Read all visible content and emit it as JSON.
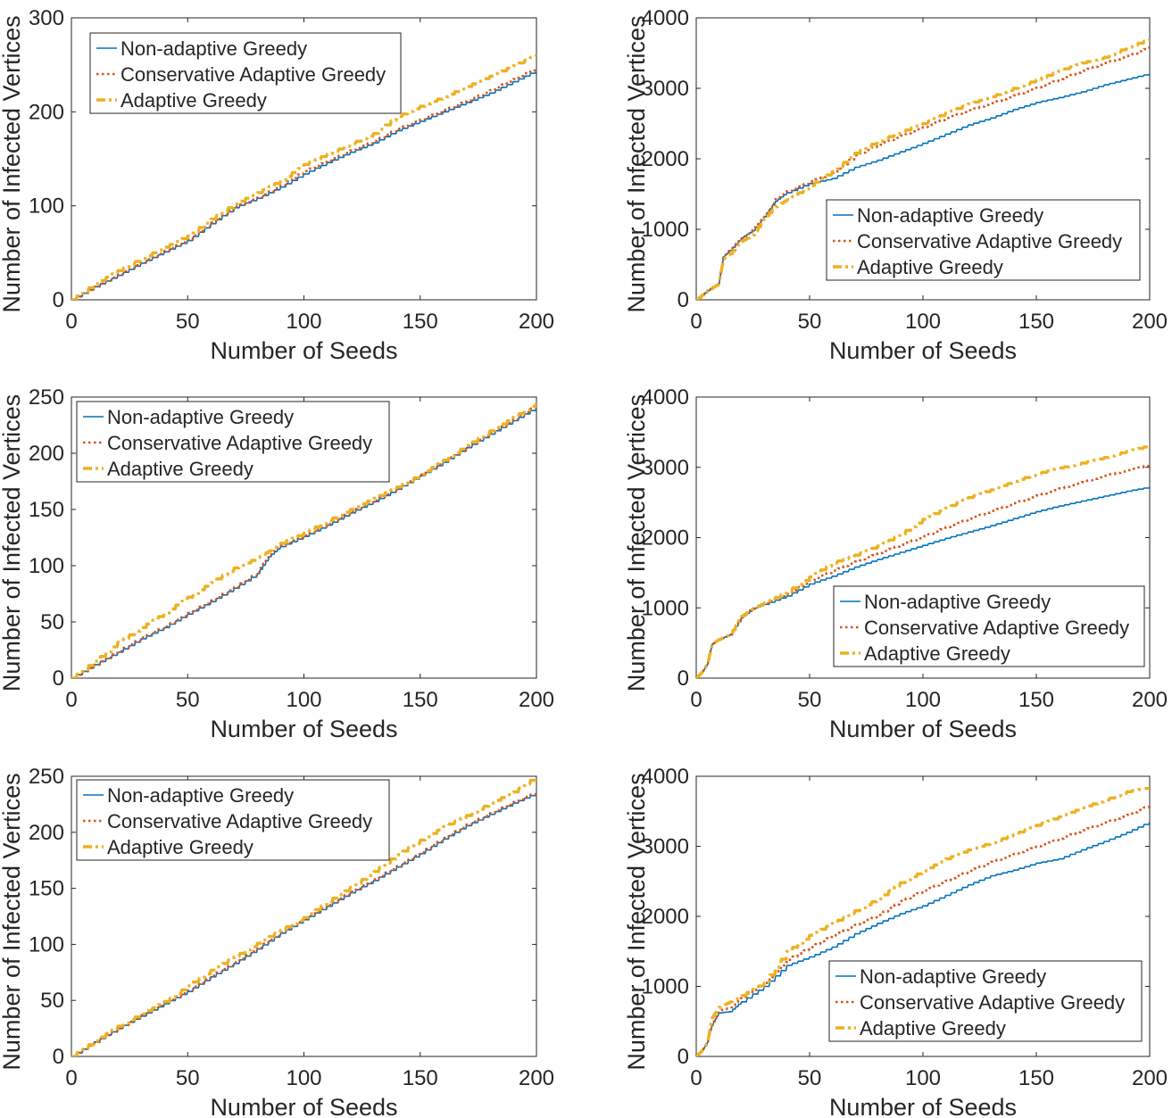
{
  "figure": {
    "series_names": [
      "Non-adaptive Greedy",
      "Conservative Adaptive Greedy",
      "Adaptive Greedy"
    ],
    "colors": {
      "non_adaptive": "#0072BD",
      "conservative": "#D95319",
      "adaptive": "#EDB120",
      "axis": "#262626",
      "legend_border": "#262626"
    }
  },
  "chart_data": [
    {
      "type": "line",
      "xlabel": "Number of Seeds",
      "ylabel": "Number of Infected Vertices",
      "xlim": [
        0,
        200
      ],
      "ylim": [
        0,
        300
      ],
      "xticks": [
        0,
        50,
        100,
        150,
        200
      ],
      "yticks": [
        0,
        100,
        200,
        300
      ],
      "legend_location": "top-left",
      "x": [
        0,
        10,
        20,
        30,
        40,
        50,
        60,
        70,
        80,
        90,
        100,
        110,
        120,
        130,
        140,
        150,
        160,
        170,
        180,
        190,
        200
      ],
      "series": [
        {
          "name": "Non-adaptive Greedy",
          "values": [
            0,
            14,
            26,
            39,
            51,
            63,
            81,
            98,
            108,
            120,
            134,
            146,
            157,
            167,
            180,
            190,
            200,
            210,
            220,
            232,
            244
          ]
        },
        {
          "name": "Conservative Adaptive Greedy",
          "values": [
            0,
            14,
            27,
            40,
            52,
            64,
            82,
            99,
            109,
            122,
            137,
            148,
            159,
            169,
            182,
            192,
            202,
            212,
            223,
            235,
            247
          ]
        },
        {
          "name": "Adaptive Greedy",
          "values": [
            0,
            17,
            31,
            44,
            56,
            68,
            86,
            102,
            114,
            127,
            144,
            155,
            166,
            177,
            195,
            206,
            216,
            227,
            238,
            249,
            261
          ]
        }
      ]
    },
    {
      "type": "line",
      "xlabel": "Number of Seeds",
      "ylabel": "Number of Infected Vertices",
      "xlim": [
        0,
        200
      ],
      "ylim": [
        0,
        4000
      ],
      "xticks": [
        0,
        50,
        100,
        150,
        200
      ],
      "yticks": [
        0,
        1000,
        2000,
        3000,
        4000
      ],
      "legend_location": "bottom-right",
      "x": [
        0,
        5,
        10,
        12,
        15,
        20,
        25,
        30,
        35,
        40,
        50,
        60,
        70,
        80,
        90,
        100,
        110,
        120,
        130,
        140,
        150,
        160,
        170,
        180,
        190,
        200
      ],
      "series": [
        {
          "name": "Non-adaptive Greedy",
          "values": [
            0,
            130,
            230,
            610,
            700,
            880,
            980,
            1180,
            1400,
            1520,
            1650,
            1720,
            1880,
            1980,
            2100,
            2220,
            2350,
            2480,
            2580,
            2700,
            2800,
            2870,
            2950,
            3050,
            3130,
            3210
          ]
        },
        {
          "name": "Conservative Adaptive Greedy",
          "values": [
            0,
            130,
            230,
            610,
            720,
            870,
            1000,
            1180,
            1430,
            1540,
            1680,
            1800,
            2050,
            2200,
            2330,
            2450,
            2580,
            2690,
            2790,
            2900,
            3010,
            3130,
            3250,
            3360,
            3460,
            3590
          ]
        },
        {
          "name": "Adaptive Greedy",
          "values": [
            0,
            130,
            230,
            580,
            650,
            830,
            920,
            1150,
            1320,
            1420,
            1620,
            1820,
            2080,
            2250,
            2380,
            2500,
            2650,
            2780,
            2880,
            3000,
            3120,
            3250,
            3360,
            3440,
            3580,
            3700
          ]
        }
      ]
    },
    {
      "type": "line",
      "xlabel": "Number of Seeds",
      "ylabel": "Number of Infected Vertices",
      "xlim": [
        0,
        200
      ],
      "ylim": [
        0,
        250
      ],
      "xticks": [
        0,
        50,
        100,
        150,
        200
      ],
      "yticks": [
        0,
        50,
        100,
        150,
        200,
        250
      ],
      "legend_location": "top-left",
      "x": [
        0,
        10,
        20,
        30,
        40,
        50,
        60,
        70,
        80,
        85,
        90,
        100,
        110,
        120,
        130,
        140,
        150,
        160,
        170,
        180,
        190,
        200
      ],
      "series": [
        {
          "name": "Non-adaptive Greedy",
          "values": [
            0,
            12,
            23,
            35,
            45,
            57,
            68,
            80,
            93,
            108,
            117,
            126,
            136,
            147,
            157,
            168,
            180,
            192,
            205,
            217,
            229,
            241
          ]
        },
        {
          "name": "Conservative Adaptive Greedy",
          "values": [
            0,
            12,
            24,
            36,
            46,
            58,
            69,
            81,
            94,
            110,
            118,
            127,
            137,
            148,
            158,
            169,
            181,
            193,
            206,
            218,
            230,
            243
          ]
        },
        {
          "name": "Adaptive Greedy",
          "values": [
            0,
            15,
            32,
            45,
            58,
            72,
            85,
            98,
            107,
            113,
            120,
            129,
            140,
            150,
            160,
            170,
            181,
            194,
            207,
            220,
            232,
            245
          ]
        }
      ]
    },
    {
      "type": "line",
      "xlabel": "Number of Seeds",
      "ylabel": "Number of Infected Vertices",
      "xlim": [
        0,
        200
      ],
      "ylim": [
        0,
        4000
      ],
      "xticks": [
        0,
        50,
        100,
        150,
        200
      ],
      "yticks": [
        0,
        1000,
        2000,
        3000,
        4000
      ],
      "legend_location": "bottom-right",
      "x": [
        0,
        3,
        5,
        7,
        10,
        15,
        20,
        25,
        30,
        40,
        50,
        60,
        70,
        80,
        90,
        100,
        110,
        120,
        130,
        140,
        150,
        160,
        170,
        180,
        190,
        200
      ],
      "series": [
        {
          "name": "Non-adaptive Greedy",
          "values": [
            0,
            100,
            200,
            480,
            550,
            620,
            860,
            980,
            1050,
            1170,
            1340,
            1450,
            1580,
            1690,
            1790,
            1890,
            1990,
            2080,
            2170,
            2270,
            2370,
            2450,
            2520,
            2590,
            2660,
            2720
          ]
        },
        {
          "name": "Conservative Adaptive Greedy",
          "values": [
            0,
            100,
            200,
            480,
            550,
            620,
            880,
            990,
            1060,
            1200,
            1390,
            1530,
            1660,
            1780,
            1900,
            2020,
            2150,
            2270,
            2380,
            2490,
            2600,
            2700,
            2790,
            2880,
            2960,
            3040
          ]
        },
        {
          "name": "Adaptive Greedy",
          "values": [
            0,
            100,
            200,
            480,
            550,
            620,
            880,
            990,
            1070,
            1230,
            1440,
            1640,
            1750,
            1880,
            2050,
            2260,
            2420,
            2570,
            2680,
            2800,
            2910,
            2990,
            3060,
            3140,
            3230,
            3310
          ]
        }
      ]
    },
    {
      "type": "line",
      "xlabel": "Number of Seeds",
      "ylabel": "Number of Infected Vertices",
      "xlim": [
        0,
        200
      ],
      "ylim": [
        0,
        250
      ],
      "xticks": [
        0,
        50,
        100,
        150,
        200
      ],
      "yticks": [
        0,
        50,
        100,
        150,
        200,
        250
      ],
      "legend_location": "top-left",
      "x": [
        0,
        10,
        20,
        30,
        40,
        50,
        60,
        70,
        80,
        90,
        100,
        110,
        120,
        130,
        140,
        150,
        160,
        170,
        180,
        190,
        200
      ],
      "series": [
        {
          "name": "Non-adaptive Greedy",
          "values": [
            0,
            13,
            25,
            36,
            47,
            58,
            71,
            83,
            96,
            110,
            122,
            134,
            146,
            157,
            169,
            181,
            194,
            206,
            216,
            226,
            235
          ]
        },
        {
          "name": "Conservative Adaptive Greedy",
          "values": [
            0,
            13,
            25,
            37,
            48,
            59,
            72,
            84,
            97,
            111,
            123,
            135,
            147,
            158,
            170,
            182,
            195,
            207,
            217,
            227,
            236
          ]
        },
        {
          "name": "Adaptive Greedy",
          "values": [
            0,
            14,
            27,
            38,
            49,
            63,
            77,
            89,
            101,
            113,
            124,
            138,
            151,
            165,
            180,
            193,
            205,
            215,
            226,
            236,
            250
          ]
        }
      ]
    },
    {
      "type": "line",
      "xlabel": "Number of Seeds",
      "ylabel": "Number of Infected Vertices",
      "xlim": [
        0,
        200
      ],
      "ylim": [
        0,
        4000
      ],
      "xticks": [
        0,
        50,
        100,
        150,
        200
      ],
      "yticks": [
        0,
        1000,
        2000,
        3000,
        4000
      ],
      "legend_location": "bottom-right",
      "x": [
        0,
        3,
        5,
        7,
        10,
        15,
        20,
        30,
        40,
        50,
        60,
        70,
        80,
        90,
        100,
        110,
        120,
        130,
        140,
        150,
        160,
        170,
        180,
        190,
        200
      ],
      "series": [
        {
          "name": "Non-adaptive Greedy",
          "values": [
            0,
            100,
            200,
            450,
            620,
            640,
            780,
            1000,
            1300,
            1420,
            1560,
            1750,
            1900,
            2040,
            2150,
            2300,
            2450,
            2580,
            2660,
            2760,
            2820,
            2950,
            3070,
            3200,
            3350
          ]
        },
        {
          "name": "Conservative Adaptive Greedy",
          "values": [
            0,
            100,
            200,
            450,
            650,
            700,
            850,
            1050,
            1380,
            1560,
            1730,
            1880,
            2020,
            2220,
            2370,
            2510,
            2650,
            2780,
            2890,
            3000,
            3110,
            3230,
            3340,
            3450,
            3590
          ]
        },
        {
          "name": "Adaptive Greedy",
          "values": [
            0,
            100,
            200,
            550,
            700,
            780,
            870,
            1050,
            1500,
            1730,
            1900,
            2080,
            2250,
            2480,
            2650,
            2820,
            2950,
            3050,
            3170,
            3300,
            3420,
            3550,
            3660,
            3780,
            3840
          ]
        }
      ]
    }
  ]
}
